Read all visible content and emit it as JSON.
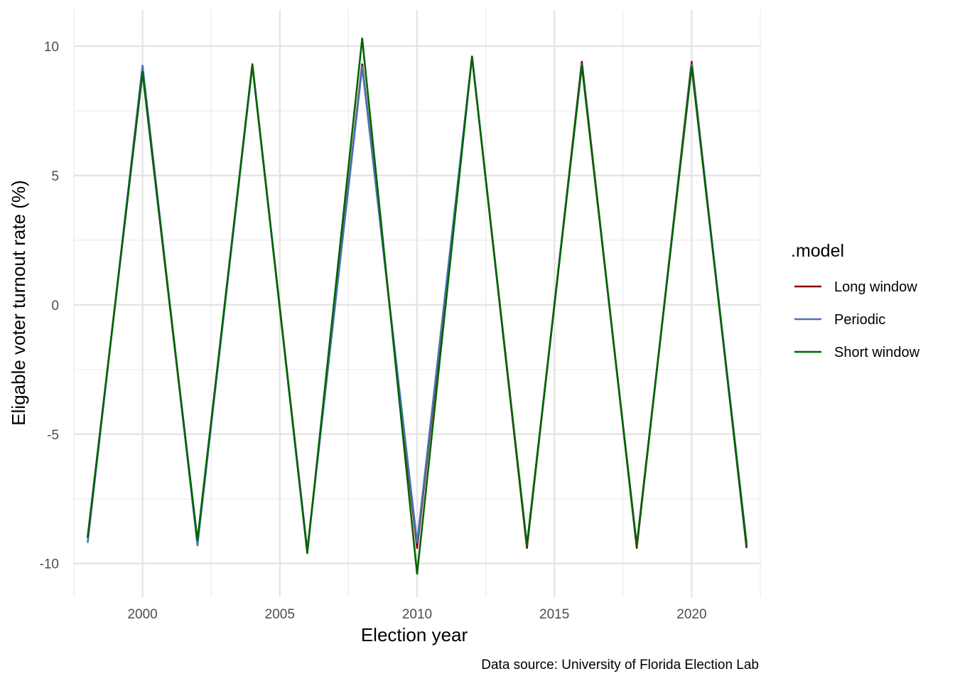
{
  "chart_data": {
    "type": "line",
    "title": "",
    "xlabel": "Election year",
    "ylabel": "Eligable voter turnout rate (%)",
    "caption": "Data source: University of Florida Election Lab",
    "xlim": [
      1997.5,
      2022.5
    ],
    "ylim": [
      -11.3,
      11.4
    ],
    "x_ticks": [
      2000,
      2005,
      2010,
      2015,
      2020
    ],
    "x_tick_labels": [
      "2000",
      "2005",
      "2010",
      "2015",
      "2020"
    ],
    "x_minor_ticks": [
      1997.5,
      2002.5,
      2007.5,
      2012.5,
      2017.5,
      2022.5
    ],
    "y_ticks": [
      -10,
      -5,
      0,
      5,
      10
    ],
    "y_tick_labels": [
      "-10",
      "-5",
      "0",
      "5",
      "10"
    ],
    "y_minor_ticks": [
      -7.5,
      -2.5,
      2.5,
      7.5
    ],
    "grid": true,
    "legend": {
      "title": ".model",
      "position": "right"
    },
    "x": [
      1998,
      2000,
      2002,
      2004,
      2006,
      2008,
      2010,
      2012,
      2014,
      2016,
      2018,
      2020,
      2022
    ],
    "series": [
      {
        "name": "Long window",
        "color": "#8B0000",
        "values": [
          -9.0,
          9.0,
          -9.2,
          9.3,
          -9.5,
          9.3,
          -9.4,
          9.6,
          -9.4,
          9.4,
          -9.4,
          9.4,
          -9.4
        ]
      },
      {
        "name": "Periodic",
        "color": "#4A74B4",
        "values": [
          -9.2,
          9.25,
          -9.3,
          9.25,
          -9.5,
          9.2,
          -9.2,
          9.6,
          -9.3,
          9.3,
          -9.3,
          9.3,
          -9.2
        ]
      },
      {
        "name": "Short window",
        "color": "#006400",
        "values": [
          -9.0,
          9.0,
          -9.1,
          9.3,
          -9.6,
          10.3,
          -10.4,
          9.6,
          -9.3,
          9.25,
          -9.3,
          9.2,
          -9.3
        ]
      }
    ]
  }
}
